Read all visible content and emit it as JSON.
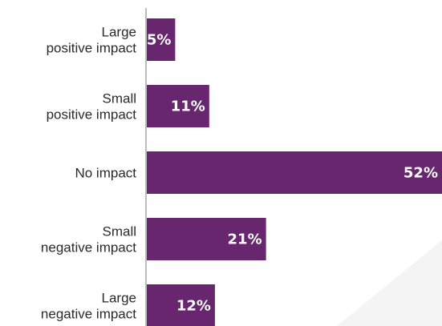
{
  "chart_data": {
    "type": "bar",
    "orientation": "horizontal",
    "categories": [
      [
        "Large",
        "positive impact"
      ],
      [
        "Small",
        "positive impact"
      ],
      [
        "No impact"
      ],
      [
        "Small",
        "negative impact"
      ],
      [
        "Large",
        "negative impact"
      ]
    ],
    "values": [
      5,
      11,
      52,
      21,
      12
    ],
    "value_labels": [
      "5%",
      "11%",
      "52%",
      "21%",
      "12%"
    ],
    "title": "",
    "xlabel": "",
    "ylabel": "",
    "xlim": [
      0,
      52
    ],
    "grid": false,
    "legend": "none",
    "colors": {
      "bar": "#68266e",
      "axis": "#bdbdbd",
      "label_text": "#2a2a2a",
      "value_text": "#ffffff"
    }
  }
}
